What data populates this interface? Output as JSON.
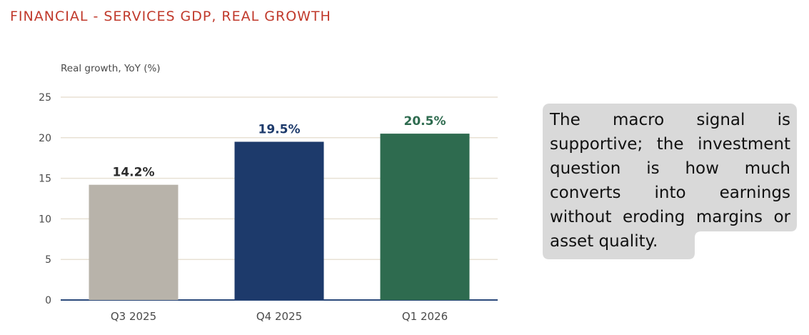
{
  "header": {
    "title": "FINANCIAL - SERVICES GDP, REAL GROWTH"
  },
  "note": {
    "text": "The macro signal is supportive; the investment question is how much converts into earnings without eroding margins or asset quality."
  },
  "colors": {
    "title": "#c0392b",
    "grid": "#e8e1d4",
    "baseline": "#2c4a7c",
    "note_background": "#d9d9d9",
    "tick_text": "#4a4a4a"
  },
  "chart_data": {
    "type": "bar",
    "title": "",
    "ylabel": "Real growth, YoY (%)",
    "xlabel": "",
    "ylim": [
      0,
      25
    ],
    "yticks": [
      0,
      5,
      10,
      15,
      20,
      25
    ],
    "grid": true,
    "categories": [
      "Q3 2025",
      "Q4 2025",
      "Q1 2026"
    ],
    "values": [
      14.2,
      19.5,
      20.5
    ],
    "data_labels": [
      "14.2%",
      "19.5%",
      "20.5%"
    ],
    "bar_colors": [
      "#b8b3aa",
      "#1d3a6b",
      "#2e6b4f"
    ],
    "label_colors": [
      "#2b2b2b",
      "#1d3a6b",
      "#2e6b4f"
    ]
  }
}
